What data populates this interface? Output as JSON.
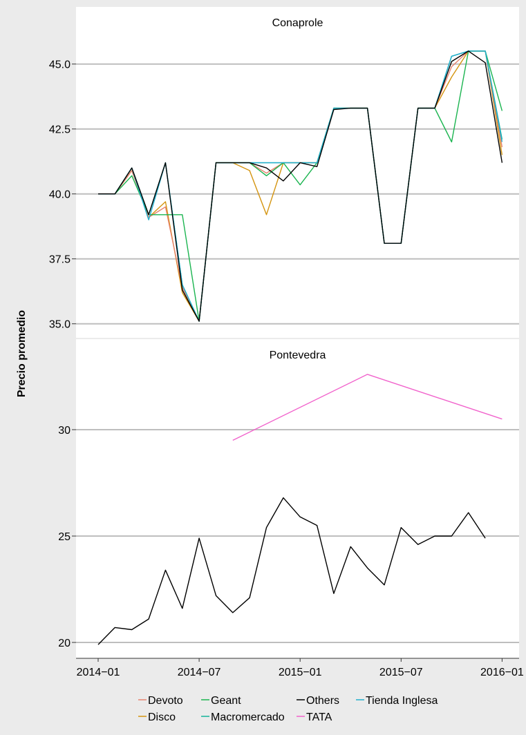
{
  "chart_data": {
    "type": "line",
    "ylabel": "Precio promedio",
    "xlabel": "",
    "x_ticks": [
      "2014−01",
      "2014−07",
      "2015−01",
      "2015−07",
      "2016−01"
    ],
    "x": [
      "2014-01",
      "2014-02",
      "2014-03",
      "2014-04",
      "2014-05",
      "2014-06",
      "2014-07",
      "2014-08",
      "2014-09",
      "2014-10",
      "2014-11",
      "2014-12",
      "2015-01",
      "2015-02",
      "2015-03",
      "2015-04",
      "2015-05",
      "2015-06",
      "2015-07",
      "2015-08",
      "2015-09",
      "2015-10",
      "2015-11",
      "2015-12",
      "2016-01"
    ],
    "legend_position": "bottom",
    "legend": [
      {
        "name": "Devoto",
        "color": "#E7836E"
      },
      {
        "name": "Geant",
        "color": "#1AB44F"
      },
      {
        "name": "Others",
        "color": "#000000"
      },
      {
        "name": "Tienda Inglesa",
        "color": "#21AECD"
      },
      {
        "name": "Disco",
        "color": "#D4940F"
      },
      {
        "name": "Macromercado",
        "color": "#13B39A"
      },
      {
        "name": "TATA",
        "color": "#F163CC"
      }
    ],
    "panels": [
      {
        "title": "Conaprole",
        "ylim": [
          34.7,
          46.2
        ],
        "y_ticks": [
          35.0,
          37.5,
          40.0,
          42.5,
          45.0
        ],
        "y_tick_labels": [
          "35.0",
          "37.5",
          "40.0",
          "42.5",
          "45.0"
        ],
        "series": [
          {
            "name": "Disco",
            "color": "#D4940F",
            "values": [
              40.0,
              40.0,
              40.9,
              39.1,
              39.7,
              36.2,
              35.1,
              41.2,
              41.2,
              40.9,
              39.2,
              41.2,
              41.2,
              41.2,
              43.3,
              43.3,
              43.3,
              38.1,
              38.1,
              43.3,
              43.3,
              44.5,
              45.5,
              45.5,
              41.5
            ]
          },
          {
            "name": "Devoto",
            "color": "#E7836E",
            "values": [
              40.0,
              40.0,
              40.9,
              39.1,
              39.5,
              36.4,
              35.1,
              41.2,
              41.2,
              41.2,
              40.8,
              41.2,
              41.2,
              41.2,
              43.3,
              43.3,
              43.3,
              38.1,
              38.1,
              43.3,
              43.3,
              44.9,
              45.5,
              45.5,
              41.8
            ]
          },
          {
            "name": "Geant",
            "color": "#1AB44F",
            "values": [
              40.0,
              40.0,
              40.7,
              39.2,
              39.2,
              39.2,
              35.1,
              41.2,
              41.2,
              41.2,
              40.7,
              41.2,
              40.35,
              41.2,
              43.3,
              43.3,
              43.3,
              38.1,
              38.1,
              43.3,
              43.3,
              42.0,
              45.5,
              45.5,
              43.2
            ]
          },
          {
            "name": "Macromercado",
            "color": "#13B39A",
            "values": [
              40.0,
              40.0,
              41.0,
              39.2,
              41.2,
              36.5,
              35.1,
              41.2,
              41.2,
              41.2,
              41.2,
              41.2,
              41.2,
              41.2,
              43.3,
              43.3,
              43.3,
              38.1,
              38.1,
              43.3,
              43.3,
              45.3,
              45.5,
              45.5,
              42.1
            ]
          },
          {
            "name": "Tienda Inglesa",
            "color": "#21AECD",
            "values": [
              40.0,
              40.0,
              41.0,
              39.0,
              41.2,
              36.5,
              35.1,
              41.2,
              41.2,
              41.2,
              41.2,
              41.2,
              41.2,
              41.2,
              43.3,
              43.3,
              43.3,
              38.1,
              38.1,
              43.3,
              43.3,
              45.3,
              45.5,
              45.5,
              42.0
            ]
          },
          {
            "name": "Others",
            "color": "#000000",
            "values": [
              40.0,
              40.0,
              41.0,
              39.2,
              41.2,
              36.3,
              35.1,
              41.2,
              41.2,
              41.2,
              41.0,
              40.5,
              41.2,
              41.05,
              43.25,
              43.3,
              43.3,
              38.1,
              38.1,
              43.3,
              43.3,
              45.1,
              45.5,
              45.05,
              41.2
            ]
          }
        ]
      },
      {
        "title": "Pontevedra",
        "ylim": [
          19.5,
          33.3
        ],
        "y_ticks": [
          20,
          25,
          30
        ],
        "y_tick_labels": [
          "20",
          "25",
          "30"
        ],
        "series": [
          {
            "name": "TATA",
            "color": "#F163CC",
            "points": [
              [
                8,
                29.5
              ],
              [
                16,
                32.6
              ],
              [
                24,
                30.5
              ]
            ]
          },
          {
            "name": "Others",
            "color": "#000000",
            "values": [
              19.9,
              20.7,
              20.6,
              21.1,
              23.4,
              21.6,
              24.9,
              22.2,
              21.4,
              22.1,
              25.4,
              26.8,
              25.9,
              25.5,
              22.3,
              24.5,
              23.5,
              22.7,
              25.4,
              24.6,
              25.0,
              25.0,
              26.1,
              24.9,
              null
            ]
          }
        ]
      }
    ]
  }
}
